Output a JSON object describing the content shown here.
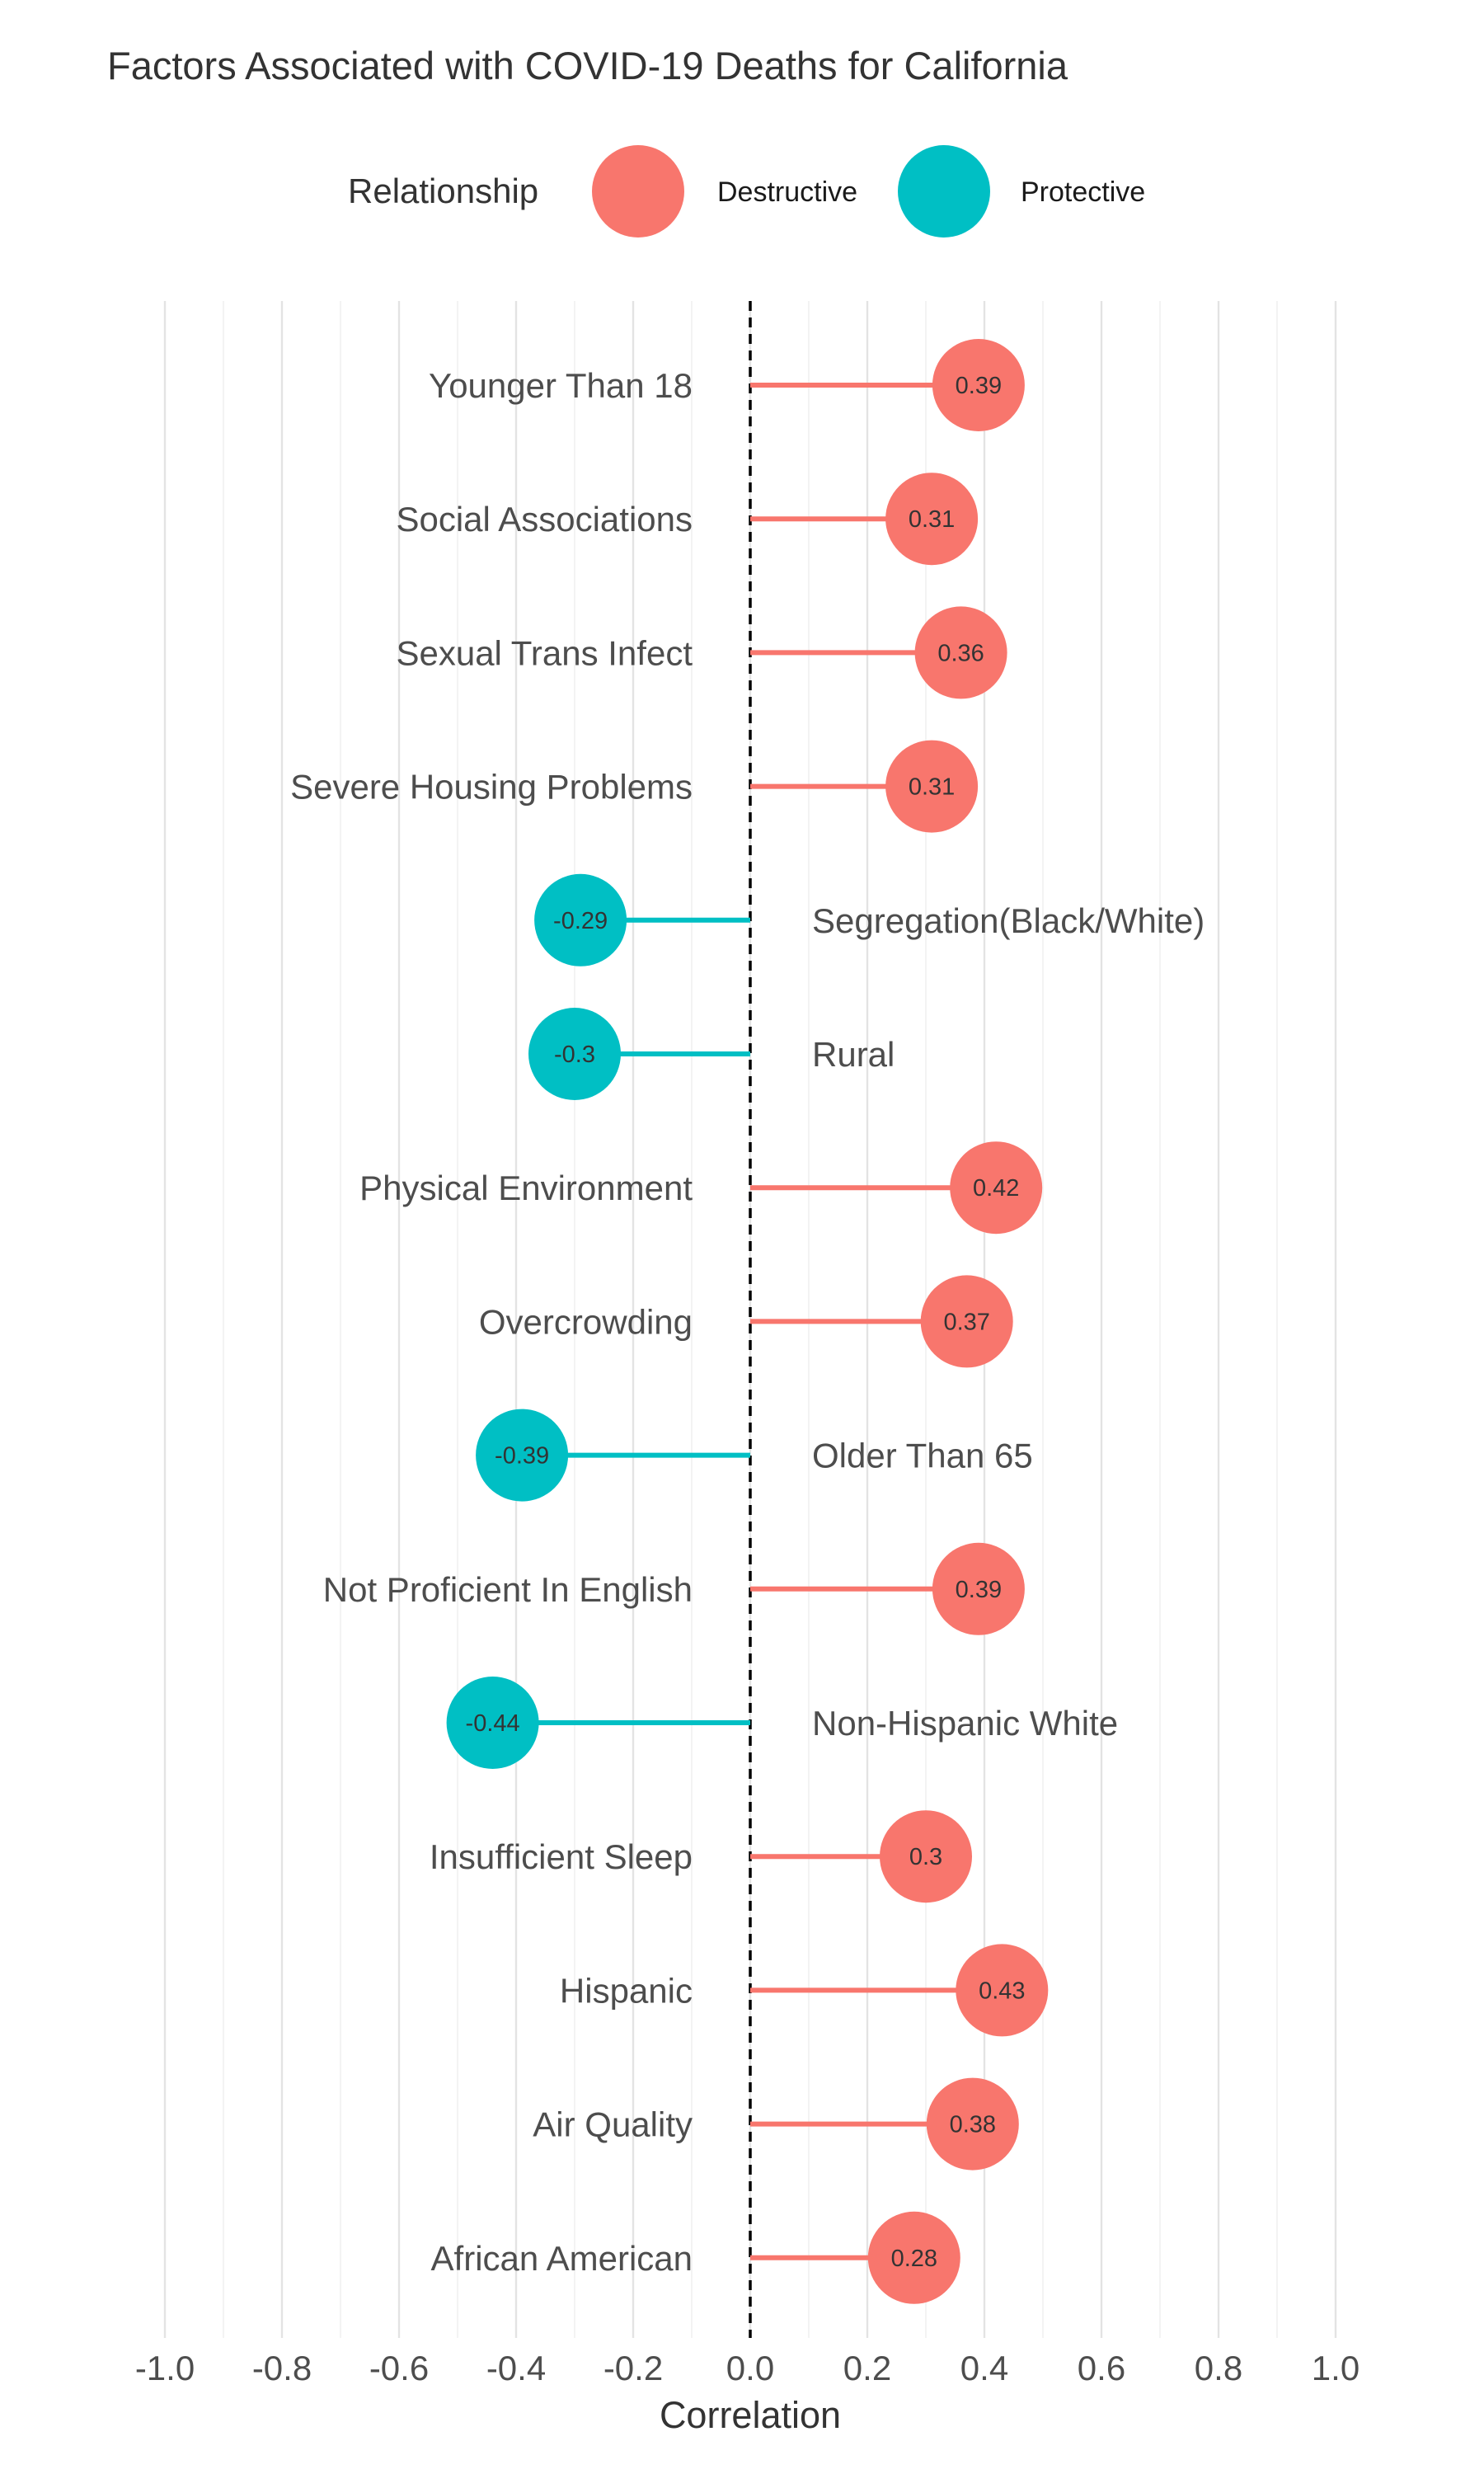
{
  "chart_data": {
    "type": "lollipop",
    "title": "Factors Associated with COVID-19 Deaths for California",
    "xlabel": "Correlation",
    "ylabel": "",
    "xlim": [
      -1.0,
      1.0
    ],
    "x_ticks": [
      "-1.0",
      "-0.8",
      "-0.6",
      "-0.4",
      "-0.2",
      "0.0",
      "0.2",
      "0.4",
      "0.6",
      "0.8",
      "1.0"
    ],
    "grid": true,
    "reference_line": 0.0,
    "legend": {
      "title": "Relationship",
      "position": "top",
      "entries": [
        {
          "name": "Destructive",
          "color": "#F8766D"
        },
        {
          "name": "Protective",
          "color": "#00BFC4"
        }
      ]
    },
    "categories": [
      "Younger Than 18",
      "Social Associations",
      "Sexual Trans Infect",
      "Severe Housing Problems",
      "Segregation(Black/White)",
      "Rural",
      "Physical Environment",
      "Overcrowding",
      "Older Than 65",
      "Not Proficient In English",
      "Non-Hispanic White",
      "Insufficient Sleep",
      "Hispanic",
      "Air Quality",
      "African American"
    ],
    "values": [
      0.39,
      0.31,
      0.36,
      0.31,
      -0.29,
      -0.3,
      0.42,
      0.37,
      -0.39,
      0.39,
      -0.44,
      0.3,
      0.43,
      0.38,
      0.28
    ],
    "value_labels": [
      "0.39",
      "0.31",
      "0.36",
      "0.31",
      "-0.29",
      "-0.3",
      "0.42",
      "0.37",
      "-0.39",
      "0.39",
      "-0.44",
      "0.3",
      "0.43",
      "0.38",
      "0.28"
    ]
  }
}
